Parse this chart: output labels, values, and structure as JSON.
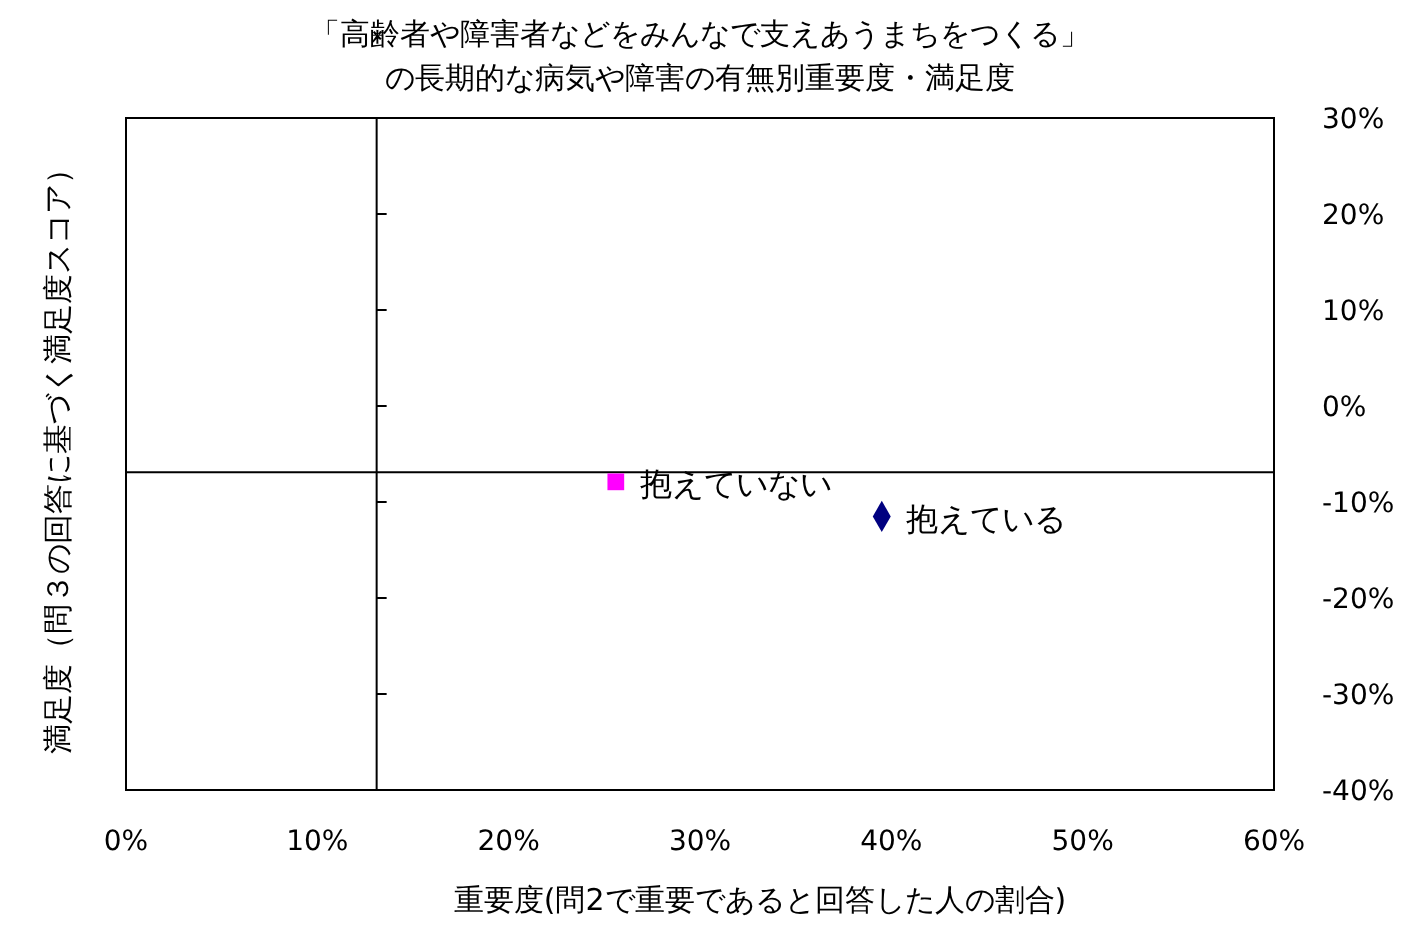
{
  "chart_data": {
    "type": "scatter",
    "title": "「高齢者や障害者などをみんなで支えあうまちをつくる」の長期的な病気や障害の有無別重要度・満足度",
    "xlabel": "重要度(問2で重要であると回答した人の割合)",
    "ylabel": "満足度（問３の回答に基づく満足度スコア）",
    "series": [
      {
        "name": "抱えていない",
        "color": "#ff00ff",
        "marker": "square",
        "x": [
          25.6
        ],
        "values": [
          -7.9
        ]
      },
      {
        "name": "抱えている",
        "color": "#000080",
        "marker": "diamond",
        "x": [
          39.5
        ],
        "values": [
          -11.5
        ]
      }
    ],
    "xlim": [
      0,
      60
    ],
    "xticks": [
      {
        "value": 0,
        "label": "0%"
      },
      {
        "value": 10,
        "label": "10%"
      },
      {
        "value": 20,
        "label": "20%"
      },
      {
        "value": 30,
        "label": "30%"
      },
      {
        "value": 40,
        "label": "40%"
      },
      {
        "value": 50,
        "label": "50%"
      },
      {
        "value": 60,
        "label": "60%"
      }
    ],
    "ylim": [
      -40,
      30
    ],
    "yticks": [
      {
        "value": -40,
        "label": "-40%"
      },
      {
        "value": -30,
        "label": "-30%"
      },
      {
        "value": -20,
        "label": "-20%"
      },
      {
        "value": -10,
        "label": "-10%"
      },
      {
        "value": 0,
        "label": "0%"
      },
      {
        "value": 10,
        "label": "10%"
      },
      {
        "value": 20,
        "label": "20%"
      },
      {
        "value": 30,
        "label": "30%"
      }
    ],
    "ref_lines": [
      {
        "axis": "x",
        "value": 13.1
      },
      {
        "axis": "y",
        "value": -6.9
      }
    ],
    "legend": false,
    "grid": false
  }
}
